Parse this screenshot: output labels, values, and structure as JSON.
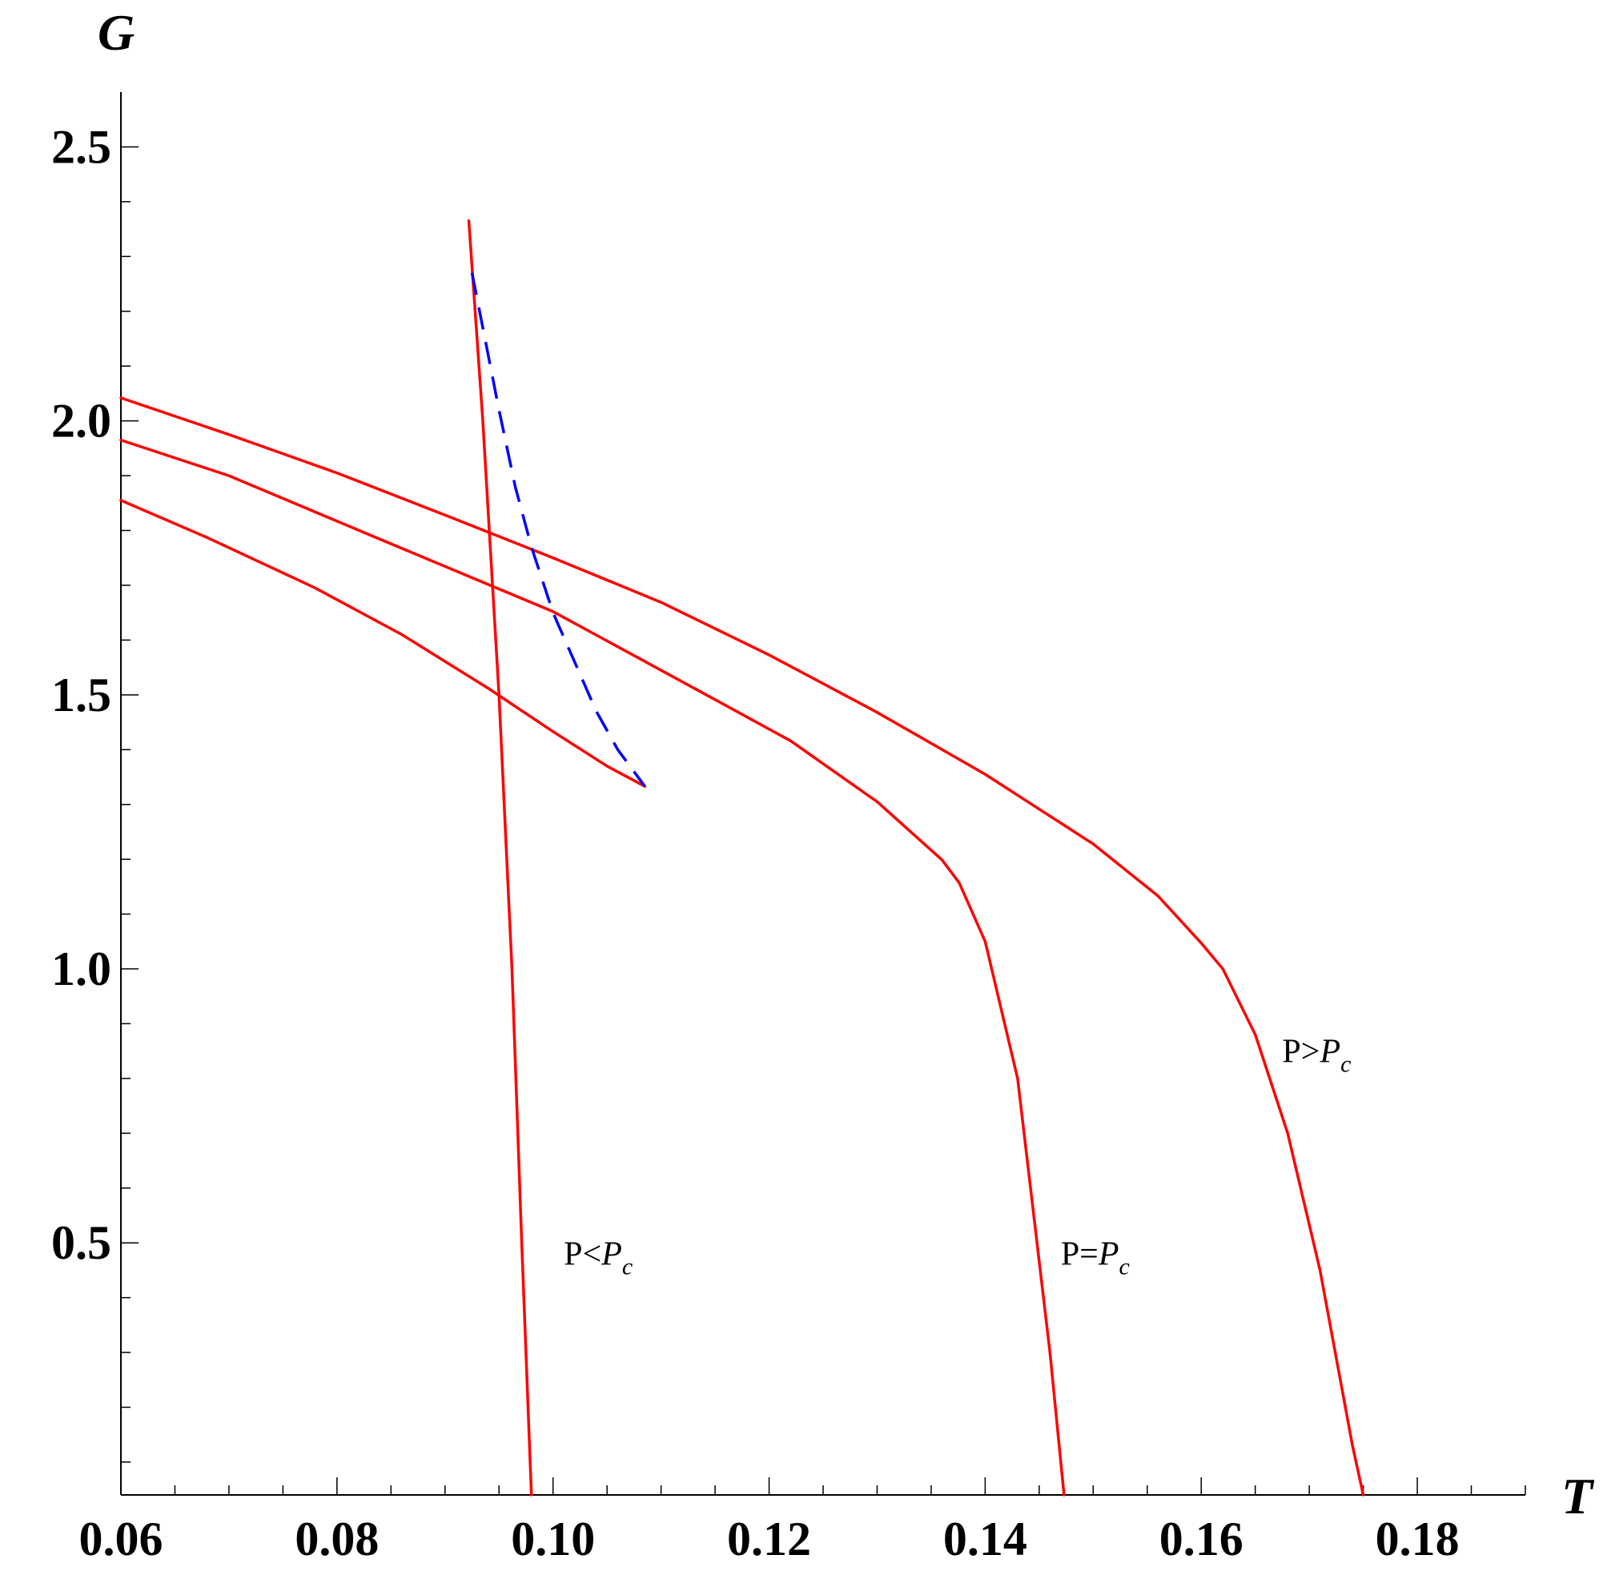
{
  "chart_data": {
    "type": "line",
    "title": "",
    "xlabel": "T",
    "ylabel": "G",
    "xlim": [
      0.06,
      0.19
    ],
    "ylim": [
      0.04,
      2.6
    ],
    "grid": false,
    "x_ticks": [
      {
        "value": 0.06,
        "label": "0.06"
      },
      {
        "value": 0.08,
        "label": "0.08"
      },
      {
        "value": 0.1,
        "label": "0.10"
      },
      {
        "value": 0.12,
        "label": "0.12"
      },
      {
        "value": 0.14,
        "label": "0.14"
      },
      {
        "value": 0.16,
        "label": "0.16"
      },
      {
        "value": 0.18,
        "label": "0.18"
      }
    ],
    "y_ticks": [
      {
        "value": 0.5,
        "label": "0.5"
      },
      {
        "value": 1.0,
        "label": "1.0"
      },
      {
        "value": 1.5,
        "label": "1.5"
      },
      {
        "value": 2.0,
        "label": "2.0"
      },
      {
        "value": 2.5,
        "label": "2.5"
      }
    ],
    "series": [
      {
        "color": "#ff0000",
        "dashed": false,
        "points": [
          [
            0.06,
            1.855
          ],
          [
            0.068,
            1.787
          ],
          [
            0.078,
            1.695
          ],
          [
            0.086,
            1.61
          ],
          [
            0.094,
            1.512
          ],
          [
            0.1,
            1.433
          ],
          [
            0.105,
            1.37
          ],
          [
            0.1085,
            1.333
          ]
        ]
      },
      {
        "color": "#ff0000",
        "dashed": false,
        "points": [
          [
            0.06,
            1.965
          ],
          [
            0.07,
            1.9
          ],
          [
            0.084,
            1.784
          ],
          [
            0.1,
            1.652
          ],
          [
            0.114,
            1.502
          ],
          [
            0.122,
            1.416
          ],
          [
            0.13,
            1.305
          ],
          [
            0.136,
            1.199
          ],
          [
            0.1376,
            1.157
          ],
          [
            0.14,
            1.05
          ],
          [
            0.143,
            0.8
          ],
          [
            0.146,
            0.3
          ],
          [
            0.1473,
            0.04
          ]
        ]
      },
      {
        "color": "#ff0000",
        "dashed": false,
        "points": [
          [
            0.06,
            2.042
          ],
          [
            0.07,
            1.975
          ],
          [
            0.08,
            1.905
          ],
          [
            0.09,
            1.828
          ],
          [
            0.1,
            1.75
          ],
          [
            0.11,
            1.669
          ],
          [
            0.12,
            1.573
          ],
          [
            0.13,
            1.468
          ],
          [
            0.14,
            1.355
          ],
          [
            0.15,
            1.228
          ],
          [
            0.156,
            1.133
          ],
          [
            0.16,
            1.047
          ],
          [
            0.162,
            1.0
          ],
          [
            0.165,
            0.88
          ],
          [
            0.168,
            0.7
          ],
          [
            0.171,
            0.45
          ],
          [
            0.174,
            0.13
          ],
          [
            0.175,
            0.04
          ]
        ]
      },
      {
        "color": "#ff0000",
        "dashed": false,
        "points": [
          [
            0.0922,
            2.365
          ],
          [
            0.0935,
            2.0
          ],
          [
            0.095,
            1.5
          ],
          [
            0.0962,
            1.0
          ],
          [
            0.0971,
            0.5
          ],
          [
            0.098,
            0.04
          ]
        ]
      },
      {
        "color": "#0000ff",
        "dashed": true,
        "points": [
          [
            0.0925,
            2.27
          ],
          [
            0.0935,
            2.17
          ],
          [
            0.095,
            2.02
          ],
          [
            0.0965,
            1.88
          ],
          [
            0.098,
            1.77
          ],
          [
            0.1,
            1.65
          ],
          [
            0.102,
            1.56
          ],
          [
            0.104,
            1.47
          ],
          [
            0.106,
            1.4
          ],
          [
            0.1085,
            1.333
          ]
        ]
      }
    ],
    "annotations": [
      {
        "x": 0.101,
        "y": 0.46,
        "main": "P<",
        "var": "P",
        "sub": "c"
      },
      {
        "x": 0.147,
        "y": 0.46,
        "main": "P=",
        "var": "P",
        "sub": "c"
      },
      {
        "x": 0.1675,
        "y": 0.83,
        "main": "P>",
        "var": "P",
        "sub": "c"
      }
    ]
  }
}
